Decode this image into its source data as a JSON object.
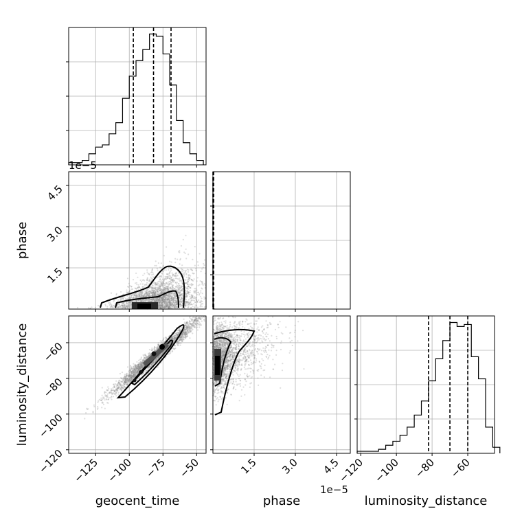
{
  "chart_data": {
    "type": "corner",
    "parameters": [
      "geocent_time",
      "phase",
      "luminosity_distance"
    ],
    "axes": {
      "geocent_time": {
        "range": [
          -145,
          -43
        ],
        "ticks": [
          -125,
          -100,
          -75,
          -50
        ],
        "tick_labels": [
          "−125",
          "−100",
          "−75",
          "−50"
        ]
      },
      "phase": {
        "range": [
          0,
          5e-05
        ],
        "ticks": [
          1.5e-05,
          3e-05,
          4.5e-05
        ],
        "tick_labels": [
          "1.5",
          "3.0",
          "4.5"
        ],
        "offset_text": "1e−5"
      },
      "luminosity_distance": {
        "range": [
          -122,
          -45
        ],
        "ticks": [
          -120,
          -100,
          -80,
          -60
        ],
        "tick_labels": [
          "−120",
          "−100",
          "−80",
          "−60"
        ]
      }
    },
    "histograms": [
      {
        "parameter": "geocent_time",
        "bins": [
          -145,
          -140,
          -135,
          -130,
          -125,
          -120,
          -115,
          -110,
          -105,
          -100,
          -95,
          -90,
          -85,
          -80,
          -75,
          -70,
          -65,
          -60,
          -55,
          -50,
          -45
        ],
        "counts": [
          1,
          1,
          2,
          5,
          8,
          9,
          14,
          19,
          30,
          40,
          47,
          52,
          59,
          58,
          50,
          36,
          20,
          10,
          5,
          2
        ],
        "quantile_lines": [
          -97,
          -82,
          -69
        ]
      },
      {
        "parameter": "phase",
        "bins": [
          0,
          2.5e-08,
          5e-08,
          7.5e-08,
          1e-07,
          1.25e-07,
          1.5e-07,
          1.75e-07,
          2e-07,
          2.25e-07,
          2.5e-07,
          2.75e-07,
          3e-07,
          3.25e-07,
          3.5e-07,
          3.75e-07,
          4e-07,
          4.25e-07,
          4.5e-07,
          4.75e-07,
          5e-07
        ],
        "counts": [
          100,
          27,
          15,
          9,
          7,
          5,
          4,
          3,
          2,
          1.5,
          1,
          0.8,
          0.5,
          0.3,
          0.2,
          0.1,
          0.1,
          0.05,
          0,
          0
        ],
        "quantile_lines": [
          2e-08,
          6e-08,
          2.8e-07
        ]
      },
      {
        "parameter": "luminosity_distance",
        "bins": [
          -122,
          -118,
          -114,
          -110,
          -106,
          -102,
          -98,
          -94,
          -90,
          -86,
          -82,
          -78,
          -74,
          -70,
          -66,
          -62,
          -58,
          -54,
          -50,
          -46,
          -42
        ],
        "counts": [
          1,
          1,
          1,
          2,
          4,
          6,
          9,
          13,
          19,
          26,
          36,
          47,
          56,
          65,
          63,
          64,
          48,
          37,
          13,
          3
        ],
        "quantile_lines": [
          -82,
          -70,
          -60
        ]
      }
    ],
    "scatter_panels": [
      {
        "x": "geocent_time",
        "y": "phase"
      },
      {
        "x": "geocent_time",
        "y": "luminosity_distance"
      },
      {
        "x": "phase",
        "y": "luminosity_distance"
      }
    ],
    "grid": true,
    "dashed_lines": "16th, 50th, 84th percentiles"
  },
  "icon_colors": {
    "ink": "#000000",
    "grid": "#b0b0b0",
    "points": "#8a8a8a"
  }
}
